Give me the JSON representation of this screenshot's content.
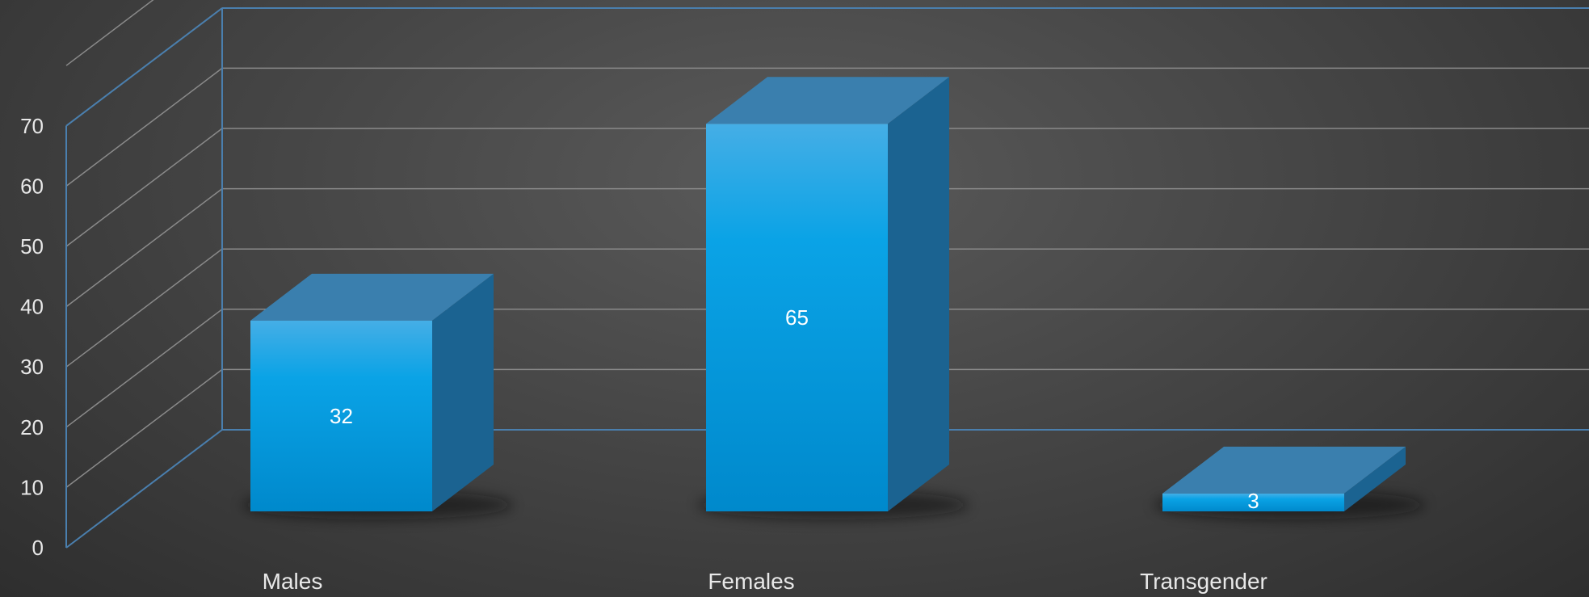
{
  "chart_data": {
    "type": "bar",
    "categories": [
      "Males",
      "Females",
      "Transgender"
    ],
    "values": [
      32,
      65,
      3
    ],
    "yticks": [
      "0",
      "10",
      "20",
      "30",
      "40",
      "50",
      "60",
      "70"
    ],
    "ylim": [
      0,
      70
    ],
    "title": "",
    "xlabel": "",
    "ylabel": "",
    "grid": true,
    "legend": "none",
    "colors": {
      "bar_front_top": "#45aee6",
      "bar_front_bottom": "#0089cc",
      "bar_top": "#3a7fae",
      "bar_side": "#1b6391",
      "wall_line": "#4a7fae",
      "grid_line": "#8a8a8a"
    }
  }
}
